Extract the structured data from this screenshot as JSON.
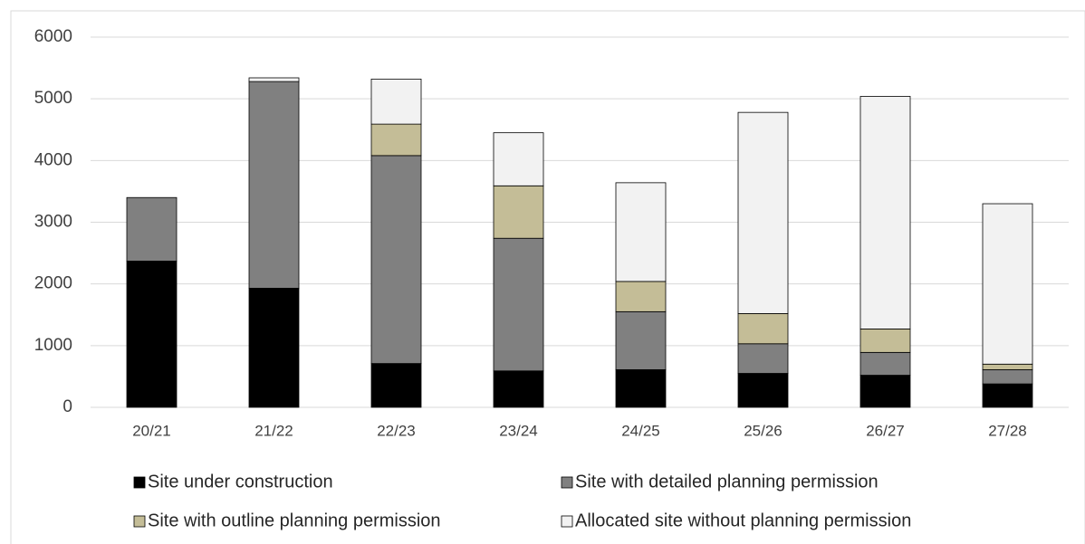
{
  "chart_data": {
    "type": "stacked-bar",
    "categories": [
      "20/21",
      "21/22",
      "22/23",
      "23/24",
      "24/25",
      "25/26",
      "26/27",
      "27/28"
    ],
    "series": [
      {
        "name": "Site under construction",
        "color": "#000000",
        "values": [
          2370,
          1930,
          710,
          590,
          610,
          550,
          520,
          380
        ]
      },
      {
        "name": "Site with detailed planning permission",
        "color": "#808080",
        "values": [
          1030,
          3350,
          3370,
          2150,
          940,
          480,
          370,
          230
        ]
      },
      {
        "name": "Site with outline planning permission",
        "color": "#c4bd97",
        "values": [
          0,
          0,
          510,
          850,
          490,
          490,
          380,
          90
        ]
      },
      {
        "name": "Allocated site without planning permission",
        "color": "#f2f2f2",
        "values": [
          0,
          60,
          730,
          860,
          1600,
          3260,
          3770,
          2600
        ]
      }
    ],
    "ylim": [
      0,
      6000
    ],
    "yticks": [
      0,
      1000,
      2000,
      3000,
      4000,
      5000,
      6000
    ],
    "grid": true
  }
}
